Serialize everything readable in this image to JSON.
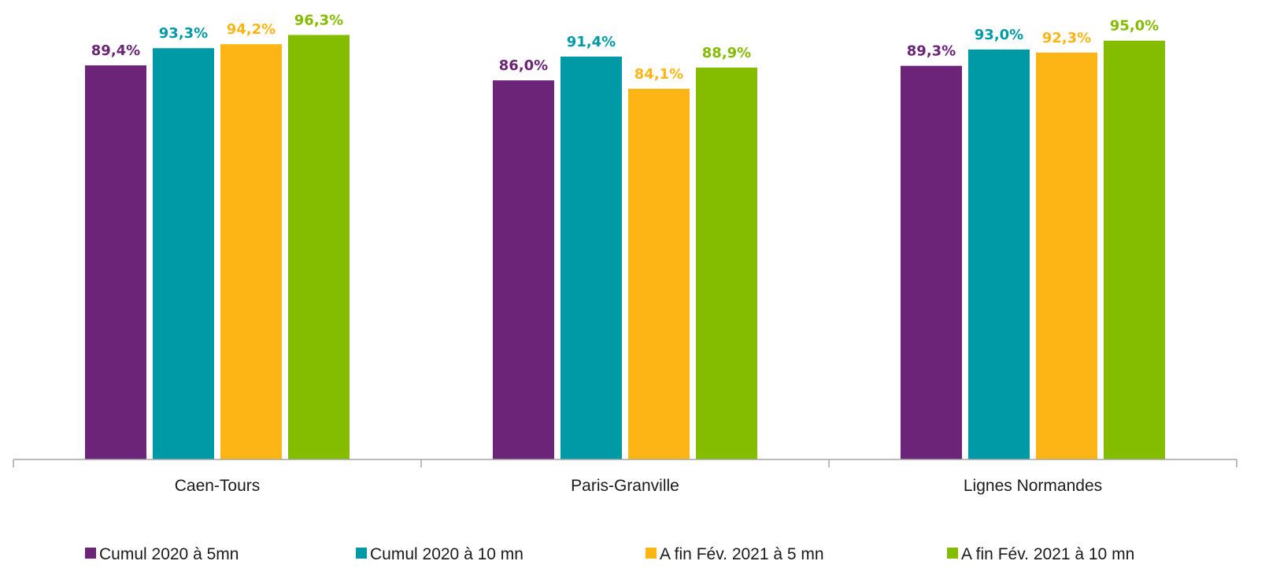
{
  "chart_data": {
    "type": "bar",
    "categories": [
      "Caen-Tours",
      "Paris-Granville",
      "Lignes Normandes"
    ],
    "series": [
      {
        "name": "Cumul 2020 à 5mn",
        "color": "#6B2477",
        "values": [
          89.4,
          86.0,
          89.3
        ],
        "labels": [
          "89,4%",
          "86,0%",
          "89,3%"
        ]
      },
      {
        "name": "Cumul 2020 à 10 mn",
        "color": "#009AA6",
        "values": [
          93.3,
          91.4,
          93.0
        ],
        "labels": [
          "93,3%",
          "91,4%",
          "93,0%"
        ]
      },
      {
        "name": "A fin Fév. 2021 à 5 mn",
        "color": "#FDB515",
        "values": [
          94.2,
          84.1,
          92.3
        ],
        "labels": [
          "94,2%",
          "84,1%",
          "92,3%"
        ]
      },
      {
        "name": "A fin Fév. 2021 à 10 mn",
        "color": "#84BD00",
        "values": [
          96.3,
          88.9,
          95.0
        ],
        "labels": [
          "96,3%",
          "88,9%",
          "95,0%"
        ]
      }
    ],
    "ylim": [
      0,
      100
    ],
    "grid": false,
    "legend_position": "bottom",
    "title": "",
    "xlabel": "",
    "ylabel": ""
  }
}
